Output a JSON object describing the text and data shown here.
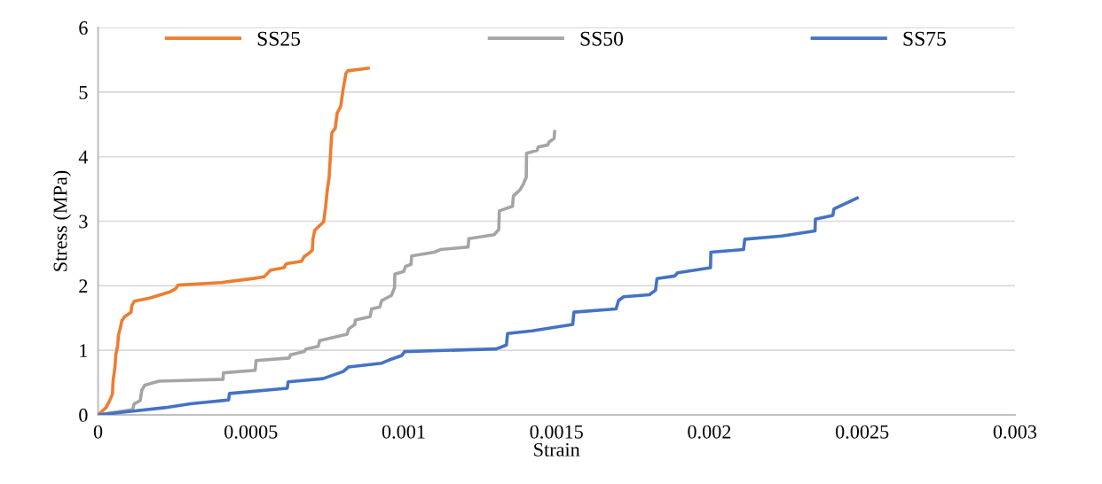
{
  "chart_data": {
    "type": "line",
    "xlabel": "Strain",
    "ylabel": "Stress (MPa)",
    "xlim": [
      0,
      0.003
    ],
    "xticks": [
      0,
      0.0005,
      0.001,
      0.0015,
      0.002,
      0.0025,
      0.003
    ],
    "ylim": [
      0,
      6
    ],
    "yticks": [
      0,
      1,
      2,
      3,
      4,
      5,
      6
    ],
    "grid": "y",
    "legend": "top",
    "marker": "none",
    "line_style": "solid",
    "series": [
      {
        "name": "SS25",
        "color": "#ed7d31",
        "x": [
          0,
          2.6e-05,
          3.8e-05,
          4.7e-05,
          4.9e-05,
          5.5e-05,
          5.8e-05,
          6.4e-05,
          6.7e-05,
          7.3e-05,
          7.8e-05,
          8.7e-05,
          0.000108,
          0.00011,
          0.000119,
          0.000169,
          0.000233,
          0.000253,
          0.000262,
          0.000404,
          0.00052,
          0.000544,
          0.000564,
          0.000608,
          0.000616,
          0.000666,
          0.000674,
          0.000689,
          0.000701,
          0.000703,
          0.000709,
          0.000738,
          0.000744,
          0.00075,
          0.000756,
          0.000762,
          0.000765,
          0.000776,
          0.000782,
          0.000794,
          0.000802,
          0.000811,
          0.000817,
          0.000884
        ],
        "values": [
          0,
          0.11,
          0.22,
          0.32,
          0.52,
          0.73,
          0.93,
          1.07,
          1.24,
          1.35,
          1.46,
          1.52,
          1.59,
          1.69,
          1.76,
          1.81,
          1.9,
          1.95,
          2.01,
          2.05,
          2.12,
          2.14,
          2.24,
          2.28,
          2.34,
          2.38,
          2.45,
          2.5,
          2.55,
          2.72,
          2.86,
          2.99,
          3.2,
          3.48,
          3.68,
          4.16,
          4.37,
          4.44,
          4.67,
          4.78,
          5.05,
          5.29,
          5.33,
          5.37
        ]
      },
      {
        "name": "SS50",
        "color": "#a5a5a5",
        "x": [
          0,
          0.000113,
          0.000118,
          0.000138,
          0.000143,
          0.000153,
          0.000199,
          0.000409,
          0.00041,
          0.000514,
          0.000517,
          0.000625,
          0.00063,
          0.000675,
          0.00068,
          0.00072,
          0.000725,
          0.000815,
          0.00082,
          0.00084,
          0.000842,
          0.00089,
          0.000895,
          0.000922,
          0.000928,
          0.00096,
          0.00097,
          0.000971,
          0.001,
          0.001006,
          0.001024,
          0.001026,
          0.0011,
          0.00112,
          0.001211,
          0.001213,
          0.001296,
          0.001311,
          0.001313,
          0.001356,
          0.001359,
          0.001381,
          0.001392,
          0.001401,
          0.001402,
          0.001437,
          0.00144,
          0.001471,
          0.001476,
          0.001492,
          0.001494
        ],
        "values": [
          0,
          0.08,
          0.17,
          0.22,
          0.38,
          0.46,
          0.52,
          0.55,
          0.65,
          0.69,
          0.84,
          0.88,
          0.93,
          0.98,
          1.02,
          1.06,
          1.15,
          1.25,
          1.33,
          1.4,
          1.47,
          1.52,
          1.64,
          1.67,
          1.77,
          1.85,
          1.97,
          2.18,
          2.22,
          2.3,
          2.33,
          2.46,
          2.52,
          2.56,
          2.6,
          2.73,
          2.79,
          2.87,
          3.16,
          3.23,
          3.39,
          3.49,
          3.58,
          3.68,
          4.05,
          4.1,
          4.15,
          4.18,
          4.23,
          4.28,
          4.39
        ]
      },
      {
        "name": "SS75",
        "color": "#4472c4",
        "x": [
          0,
          0.000101,
          0.000218,
          0.000302,
          0.000427,
          0.00043,
          0.000619,
          0.000622,
          0.000736,
          0.000802,
          0.000819,
          0.000928,
          0.000953,
          0.000994,
          0.001003,
          0.001303,
          0.001336,
          0.00134,
          0.00142,
          0.001553,
          0.001557,
          0.001695,
          0.001703,
          0.00172,
          0.001804,
          0.001824,
          0.001829,
          0.001887,
          0.001896,
          0.002004,
          0.002005,
          0.002112,
          0.002116,
          0.002237,
          0.002346,
          0.002347,
          0.002404,
          0.002408,
          0.002484
        ],
        "values": [
          0,
          0.05,
          0.11,
          0.17,
          0.23,
          0.33,
          0.41,
          0.51,
          0.56,
          0.67,
          0.74,
          0.8,
          0.85,
          0.92,
          0.98,
          1.02,
          1.08,
          1.26,
          1.3,
          1.4,
          1.59,
          1.64,
          1.77,
          1.83,
          1.86,
          1.93,
          2.11,
          2.15,
          2.2,
          2.28,
          2.52,
          2.56,
          2.72,
          2.77,
          2.85,
          3.03,
          3.09,
          3.19,
          3.36
        ]
      }
    ]
  }
}
